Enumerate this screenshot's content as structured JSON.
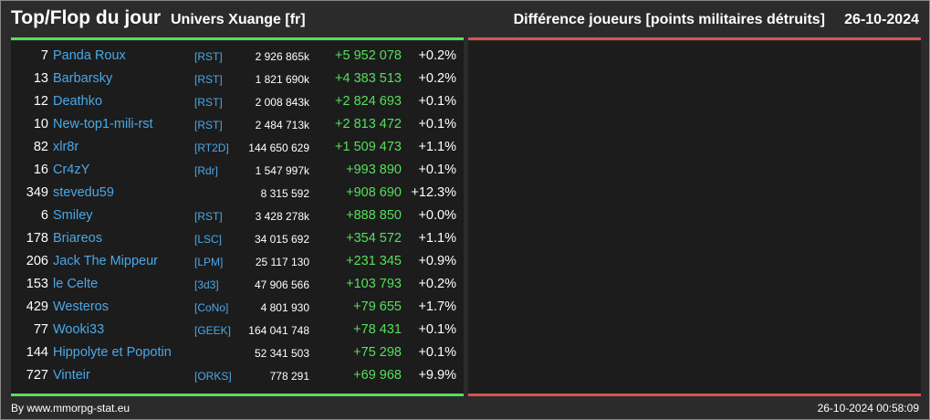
{
  "header": {
    "title": "Top/Flop du jour",
    "universe": "Univers Xuange [fr]",
    "metric": "Différence joueurs [points militaires détruits]",
    "date": "26-10-2024"
  },
  "colors": {
    "positive": "#55e05b",
    "negative": "#d9534f",
    "link": "#4aa8e8"
  },
  "top": [
    {
      "rank": "7",
      "name": "Panda Roux",
      "alliance": "[RST]",
      "points": "2 926 865k",
      "diff": "+5 952 078",
      "pct": "+0.2%"
    },
    {
      "rank": "13",
      "name": "Barbarsky",
      "alliance": "[RST]",
      "points": "1 821 690k",
      "diff": "+4 383 513",
      "pct": "+0.2%"
    },
    {
      "rank": "12",
      "name": "Deathko",
      "alliance": "[RST]",
      "points": "2 008 843k",
      "diff": "+2 824 693",
      "pct": "+0.1%"
    },
    {
      "rank": "10",
      "name": "New-top1-mili-rst",
      "alliance": "[RST]",
      "points": "2 484 713k",
      "diff": "+2 813 472",
      "pct": "+0.1%"
    },
    {
      "rank": "82",
      "name": "xlr8r",
      "alliance": "[RT2D]",
      "points": "144 650 629",
      "diff": "+1 509 473",
      "pct": "+1.1%"
    },
    {
      "rank": "16",
      "name": "Cr4zY",
      "alliance": "[Rdr]",
      "points": "1 547 997k",
      "diff": "+993 890",
      "pct": "+0.1%"
    },
    {
      "rank": "349",
      "name": "stevedu59",
      "alliance": "",
      "points": "8 315 592",
      "diff": "+908 690",
      "pct": "+12.3%"
    },
    {
      "rank": "6",
      "name": "Smiley",
      "alliance": "[RST]",
      "points": "3 428 278k",
      "diff": "+888 850",
      "pct": "+0.0%"
    },
    {
      "rank": "178",
      "name": "Briareos",
      "alliance": "[LSC]",
      "points": "34 015 692",
      "diff": "+354 572",
      "pct": "+1.1%"
    },
    {
      "rank": "206",
      "name": "Jack The Mippeur",
      "alliance": "[LPM]",
      "points": "25 117 130",
      "diff": "+231 345",
      "pct": "+0.9%"
    },
    {
      "rank": "153",
      "name": "le Celte",
      "alliance": "[3d3]",
      "points": "47 906 566",
      "diff": "+103 793",
      "pct": "+0.2%"
    },
    {
      "rank": "429",
      "name": "Westeros",
      "alliance": "[CoNo]",
      "points": "4 801 930",
      "diff": "+79 655",
      "pct": "+1.7%"
    },
    {
      "rank": "77",
      "name": "Wooki33",
      "alliance": "[GEEK]",
      "points": "164 041 748",
      "diff": "+78 431",
      "pct": "+0.1%"
    },
    {
      "rank": "144",
      "name": "Hippolyte et Popotin",
      "alliance": "",
      "points": "52 341 503",
      "diff": "+75 298",
      "pct": "+0.1%"
    },
    {
      "rank": "727",
      "name": "Vinteir",
      "alliance": "[ORKS]",
      "points": "778 291",
      "diff": "+69 968",
      "pct": "+9.9%"
    }
  ],
  "footer": {
    "credit": "By www.mmorpg-stat.eu",
    "timestamp": "26-10-2024 00:58:09"
  }
}
